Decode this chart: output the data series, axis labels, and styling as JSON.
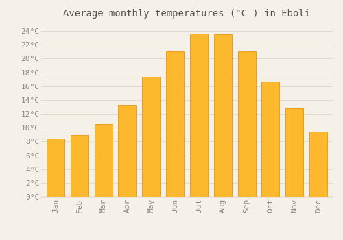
{
  "title": "Average monthly temperatures (°C ) in Eboli",
  "months": [
    "Jan",
    "Feb",
    "Mar",
    "Apr",
    "May",
    "Jun",
    "Jul",
    "Aug",
    "Sep",
    "Oct",
    "Nov",
    "Dec"
  ],
  "temperatures": [
    8.4,
    8.9,
    10.5,
    13.3,
    17.4,
    21.0,
    23.6,
    23.5,
    21.0,
    16.7,
    12.8,
    9.4
  ],
  "bar_color": "#FDB92E",
  "bar_edge_color": "#E8960A",
  "background_color": "#F5F0E8",
  "plot_bg_color": "#F5F0E8",
  "grid_color": "#DDDDCC",
  "ylim": [
    0,
    25
  ],
  "yticks": [
    0,
    2,
    4,
    6,
    8,
    10,
    12,
    14,
    16,
    18,
    20,
    22,
    24
  ],
  "title_fontsize": 10,
  "tick_fontsize": 8,
  "tick_label_color": "#888880",
  "title_color": "#555550",
  "font_family": "monospace"
}
